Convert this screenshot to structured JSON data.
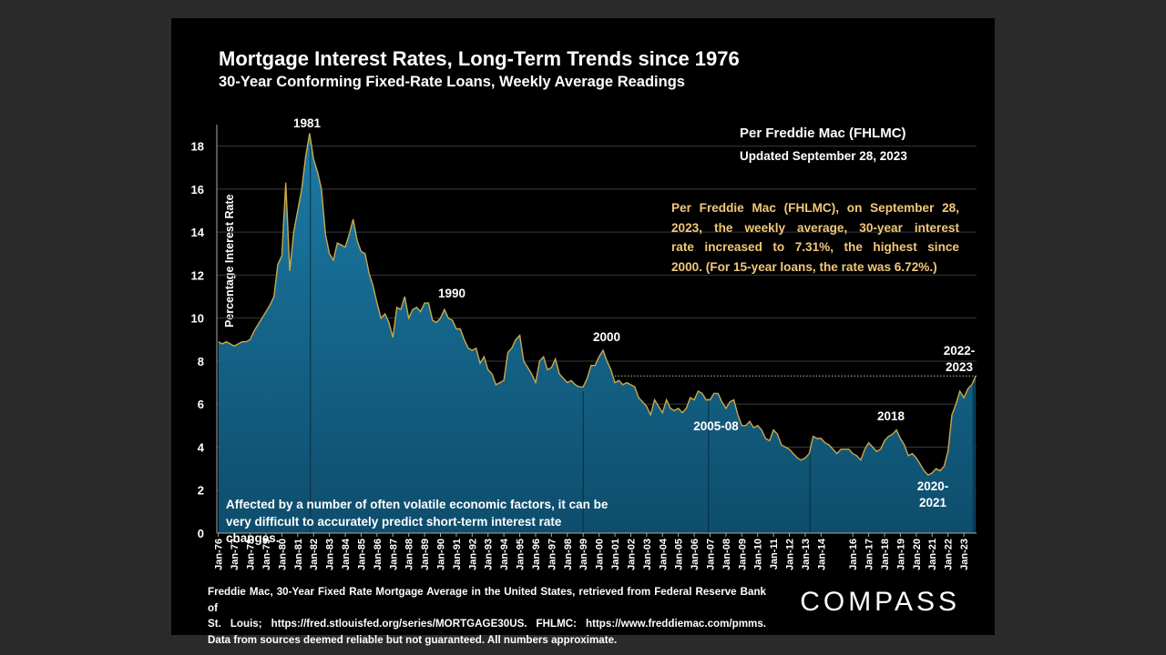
{
  "chart_data": {
    "type": "area",
    "title": "Mortgage Interest Rates, Long-Term Trends since 1976",
    "subtitle": "30-Year Conforming Fixed-Rate Loans, Weekly Average Readings",
    "y_label": "Percentage Interest Rate",
    "source_heading": "Per Freddie Mac (FHLMC)",
    "updated": "Updated September 28, 2023",
    "highlight_note": [
      "Per Freddie Mac (FHLMC), on September 28,",
      "2023, the weekly average, 30-year interest",
      "rate increased to 7.31%, the highest since",
      "2000. (For 15-year loans, the rate was 6.72%.)"
    ],
    "bottom_note": [
      "Affected by a number of often volatile economic factors, it can be",
      "very difficult to accurately predict short-term interest rate changes."
    ],
    "annotations": [
      [
        "1981"
      ],
      [
        "1990"
      ],
      [
        "2000"
      ],
      [
        "2005-08"
      ],
      [
        "2018"
      ],
      [
        "2020-",
        "2021"
      ],
      [
        "2022-",
        "2023"
      ]
    ],
    "footer": [
      "Freddie Mac, 30-Year Fixed Rate Mortgage Average in the United States, retrieved from Federal Reserve Bank of",
      "St. Louis; https://fred.stlouisfed.org/series/MORTGAGE30US. FHLMC: https://www.freddiemac.com/pmms.",
      "Data from sources deemed reliable but not guaranteed. All numbers approximate."
    ],
    "brand": "COMPASS",
    "color": "#15678c",
    "line_color": "#c9a94c",
    "grid": true,
    "xlim": [
      1975.9,
      2023.8
    ],
    "ylim": [
      0,
      19
    ],
    "yticks": [
      0,
      2,
      4,
      6,
      8,
      10,
      12,
      14,
      16,
      18
    ],
    "xticks": [
      {
        "value": 1976,
        "label": "Jan-76"
      },
      {
        "value": 1977,
        "label": "Jan-77"
      },
      {
        "value": 1978,
        "label": "Jan-78"
      },
      {
        "value": 1979,
        "label": "Jan-79"
      },
      {
        "value": 1980,
        "label": "Jan-80"
      },
      {
        "value": 1981,
        "label": "Jan-81"
      },
      {
        "value": 1982,
        "label": "Jan-82"
      },
      {
        "value": 1983,
        "label": "Jan-83"
      },
      {
        "value": 1984,
        "label": "Jan-84"
      },
      {
        "value": 1985,
        "label": "Jan-85"
      },
      {
        "value": 1986,
        "label": "Jan-86"
      },
      {
        "value": 1987,
        "label": "Jan-87"
      },
      {
        "value": 1988,
        "label": "Jan-88"
      },
      {
        "value": 1989,
        "label": "Jan-89"
      },
      {
        "value": 1990,
        "label": "Jan-90"
      },
      {
        "value": 1991,
        "label": "Jan-91"
      },
      {
        "value": 1992,
        "label": "Jan-92"
      },
      {
        "value": 1993,
        "label": "Jan-93"
      },
      {
        "value": 1994,
        "label": "Jan-94"
      },
      {
        "value": 1995,
        "label": "Jan-95"
      },
      {
        "value": 1996,
        "label": "Jan-96"
      },
      {
        "value": 1997,
        "label": "Jan-97"
      },
      {
        "value": 1998,
        "label": "Jan-98"
      },
      {
        "value": 1999,
        "label": "Jan-99"
      },
      {
        "value": 2000,
        "label": "Jan-00"
      },
      {
        "value": 2001,
        "label": "Jan-01"
      },
      {
        "value": 2002,
        "label": "Jan-02"
      },
      {
        "value": 2003,
        "label": "Jan-03"
      },
      {
        "value": 2004,
        "label": "Jan-04"
      },
      {
        "value": 2005,
        "label": "Jan-05"
      },
      {
        "value": 2006,
        "label": "Jan-06"
      },
      {
        "value": 2007,
        "label": "Jan-07"
      },
      {
        "value": 2008,
        "label": "Jan-08"
      },
      {
        "value": 2009,
        "label": "Jan-09"
      },
      {
        "value": 2010,
        "label": "Jan-10"
      },
      {
        "value": 2011,
        "label": "Jan-11"
      },
      {
        "value": 2012,
        "label": "Jan-12"
      },
      {
        "value": 2013,
        "label": "Jan-13"
      },
      {
        "value": 2014,
        "label": "Jan-14"
      },
      {
        "value": 2016,
        "label": "Jan-16"
      },
      {
        "value": 2017,
        "label": "Jan-17"
      },
      {
        "value": 2018,
        "label": "Jan-18"
      },
      {
        "value": 2019,
        "label": "Jan-19"
      },
      {
        "value": 2020,
        "label": "Jan-20"
      },
      {
        "value": 2021,
        "label": "Jan-21"
      },
      {
        "value": 2022,
        "label": "Jan-22"
      },
      {
        "value": 2023,
        "label": "Jan-23"
      }
    ],
    "x": [
      1976,
      1976.25,
      1976.5,
      1976.75,
      1977,
      1977.25,
      1977.5,
      1977.75,
      1978,
      1978.25,
      1978.5,
      1978.75,
      1979,
      1979.25,
      1979.5,
      1979.75,
      1980,
      1980.25,
      1980.5,
      1980.75,
      1981,
      1981.25,
      1981.5,
      1981.75,
      1982,
      1982.25,
      1982.5,
      1982.75,
      1983,
      1983.25,
      1983.5,
      1983.75,
      1984,
      1984.25,
      1984.5,
      1984.75,
      1985,
      1985.25,
      1985.5,
      1985.75,
      1986,
      1986.25,
      1986.5,
      1986.75,
      1987,
      1987.25,
      1987.5,
      1987.75,
      1988,
      1988.25,
      1988.5,
      1988.75,
      1989,
      1989.25,
      1989.5,
      1989.75,
      1990,
      1990.25,
      1990.5,
      1990.75,
      1991,
      1991.25,
      1991.5,
      1991.75,
      1992,
      1992.25,
      1992.5,
      1992.75,
      1993,
      1993.25,
      1993.5,
      1993.75,
      1994,
      1994.25,
      1994.5,
      1994.75,
      1995,
      1995.25,
      1995.5,
      1995.75,
      1996,
      1996.25,
      1996.5,
      1996.75,
      1997,
      1997.25,
      1997.5,
      1997.75,
      1998,
      1998.25,
      1998.5,
      1998.75,
      1999,
      1999.25,
      1999.5,
      1999.75,
      2000,
      2000.25,
      2000.5,
      2000.75,
      2001,
      2001.25,
      2001.5,
      2001.75,
      2002,
      2002.25,
      2002.5,
      2002.75,
      2003,
      2003.25,
      2003.5,
      2003.75,
      2004,
      2004.25,
      2004.5,
      2004.75,
      2005,
      2005.25,
      2005.5,
      2005.75,
      2006,
      2006.25,
      2006.5,
      2006.75,
      2007,
      2007.25,
      2007.5,
      2007.75,
      2008,
      2008.25,
      2008.5,
      2008.75,
      2009,
      2009.25,
      2009.5,
      2009.75,
      2010,
      2010.25,
      2010.5,
      2010.75,
      2011,
      2011.25,
      2011.5,
      2011.75,
      2012,
      2012.25,
      2012.5,
      2012.75,
      2013,
      2013.25,
      2013.5,
      2013.75,
      2014,
      2014.25,
      2014.5,
      2014.75,
      2015,
      2015.25,
      2015.5,
      2015.75,
      2016,
      2016.25,
      2016.5,
      2016.75,
      2017,
      2017.25,
      2017.5,
      2017.75,
      2018,
      2018.25,
      2018.5,
      2018.75,
      2019,
      2019.25,
      2019.5,
      2019.75,
      2020,
      2020.25,
      2020.5,
      2020.75,
      2021,
      2021.25,
      2021.5,
      2021.75,
      2022,
      2022.25,
      2022.5,
      2022.75,
      2023,
      2023.25,
      2023.5,
      2023.75
    ],
    "values": [
      8.9,
      8.8,
      8.9,
      8.8,
      8.7,
      8.8,
      8.9,
      8.9,
      9.0,
      9.4,
      9.7,
      10.0,
      10.3,
      10.6,
      11.0,
      12.5,
      12.9,
      16.3,
      12.2,
      14.0,
      15.0,
      16.0,
      17.5,
      18.6,
      17.4,
      16.8,
      16.0,
      13.9,
      13.0,
      12.7,
      13.5,
      13.4,
      13.3,
      13.9,
      14.6,
      13.6,
      13.1,
      13.0,
      12.1,
      11.5,
      10.7,
      10.0,
      10.2,
      9.8,
      9.1,
      10.5,
      10.4,
      11.0,
      10.0,
      10.4,
      10.5,
      10.3,
      10.7,
      10.7,
      9.9,
      9.8,
      10.0,
      10.4,
      10.0,
      9.9,
      9.5,
      9.5,
      9.0,
      8.6,
      8.5,
      8.6,
      7.9,
      8.2,
      7.6,
      7.4,
      6.9,
      7.0,
      7.1,
      8.4,
      8.6,
      9.0,
      9.2,
      8.0,
      7.7,
      7.4,
      7.0,
      8.0,
      8.2,
      7.6,
      7.7,
      8.1,
      7.4,
      7.2,
      7.0,
      7.1,
      6.9,
      6.8,
      6.8,
      7.2,
      7.8,
      7.8,
      8.2,
      8.5,
      8.0,
      7.6,
      7.0,
      7.1,
      6.9,
      7.0,
      6.9,
      6.8,
      6.3,
      6.1,
      5.9,
      5.5,
      6.2,
      5.9,
      5.6,
      6.2,
      5.8,
      5.7,
      5.8,
      5.6,
      5.8,
      6.3,
      6.2,
      6.6,
      6.5,
      6.2,
      6.2,
      6.5,
      6.5,
      6.1,
      5.8,
      6.1,
      6.2,
      5.5,
      5.0,
      5.0,
      5.2,
      4.9,
      5.0,
      4.8,
      4.4,
      4.3,
      4.8,
      4.6,
      4.1,
      4.0,
      3.9,
      3.7,
      3.5,
      3.4,
      3.5,
      3.7,
      4.5,
      4.4,
      4.4,
      4.2,
      4.1,
      3.9,
      3.7,
      3.9,
      3.9,
      3.9,
      3.7,
      3.6,
      3.4,
      3.9,
      4.2,
      4.0,
      3.8,
      3.9,
      4.3,
      4.5,
      4.6,
      4.8,
      4.4,
      4.1,
      3.6,
      3.7,
      3.5,
      3.2,
      2.9,
      2.7,
      2.8,
      3.0,
      2.9,
      3.1,
      3.8,
      5.5,
      6.0,
      6.6,
      6.3,
      6.7,
      6.9,
      7.31
    ]
  }
}
